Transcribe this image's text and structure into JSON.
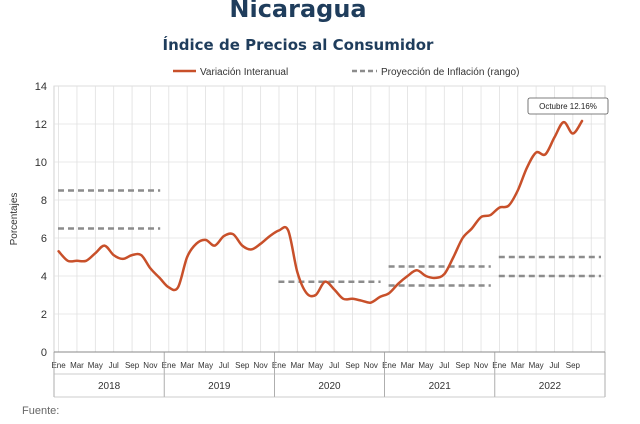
{
  "chart_data": {
    "type": "line",
    "title": "Nicaragua",
    "subtitle": "Índice de Precios al Consumidor",
    "ylabel": "Porcentajes",
    "ylim": [
      0,
      14
    ],
    "yticks": [
      0,
      2,
      4,
      6,
      8,
      10,
      12,
      14
    ],
    "grid": true,
    "legend_position": "top",
    "x_month_labels": [
      "Ene",
      "Mar",
      "May",
      "Jul",
      "Sep",
      "Nov"
    ],
    "years": [
      "2018",
      "2019",
      "2020",
      "2021",
      "2022"
    ],
    "annotation": "Octubre 12.16%",
    "footer": "Fuente:",
    "series": [
      {
        "name": "Variación Interanual",
        "color": "#c8502a",
        "style": "solid",
        "start": "2018-01",
        "values": [
          5.3,
          4.8,
          4.8,
          4.8,
          5.2,
          5.6,
          5.1,
          4.9,
          5.1,
          5.1,
          4.4,
          3.9,
          3.4,
          3.4,
          5.0,
          5.7,
          5.9,
          5.6,
          6.1,
          6.2,
          5.6,
          5.4,
          5.7,
          6.1,
          6.4,
          6.4,
          4.2,
          3.1,
          3.0,
          3.7,
          3.3,
          2.8,
          2.8,
          2.7,
          2.6,
          2.9,
          3.1,
          3.6,
          4.0,
          4.3,
          4.0,
          3.9,
          4.1,
          5.0,
          6.0,
          6.5,
          7.1,
          7.2,
          7.6,
          7.7,
          8.5,
          9.7,
          10.5,
          10.4,
          11.3,
          12.1,
          11.5,
          12.16
        ]
      }
    ],
    "projection_bands": {
      "name": "Proyección de Inflación (rango)",
      "color": "#8c8c8c",
      "style": "dashed",
      "bands": [
        {
          "year": "2018",
          "low": 6.5,
          "high": 8.5
        },
        {
          "year": "2020",
          "low": 3.7,
          "high": 3.7
        },
        {
          "year": "2021",
          "low": 3.5,
          "high": 4.5
        },
        {
          "year": "2022",
          "low": 4.0,
          "high": 5.0
        }
      ]
    }
  }
}
